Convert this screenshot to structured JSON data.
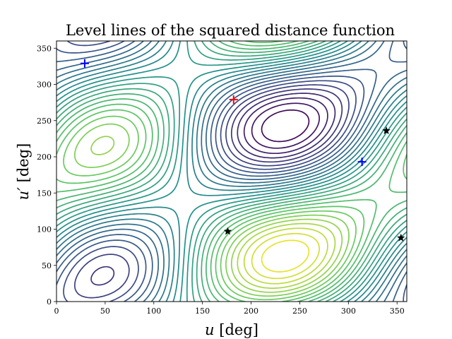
{
  "chart_data": {
    "type": "contour",
    "title": "Level lines of the squared distance function",
    "xlabel_var": "u",
    "xlabel_unit": "[deg]",
    "ylabel_var": "u′",
    "ylabel_unit": "[deg]",
    "xlim": [
      0,
      360
    ],
    "ylim": [
      0,
      360
    ],
    "xticks": [
      0,
      50,
      100,
      150,
      200,
      250,
      300,
      350
    ],
    "yticks": [
      0,
      50,
      100,
      150,
      200,
      250,
      300,
      350
    ],
    "colormap": [
      "#440154",
      "#3b528b",
      "#21918c",
      "#5ec962",
      "#fde725"
    ],
    "markers": [
      {
        "kind": "plus",
        "color": "#ff0000",
        "x": 182,
        "y": 279
      },
      {
        "kind": "plus",
        "color": "#0000ff",
        "x": 29,
        "y": 329
      },
      {
        "kind": "plus",
        "color": "#0000ff",
        "x": 314,
        "y": 193
      },
      {
        "kind": "star",
        "color": "#000000",
        "x": 176,
        "y": 97
      },
      {
        "kind": "star",
        "color": "#000000",
        "x": 339,
        "y": 236
      },
      {
        "kind": "star",
        "color": "#000000",
        "x": 354,
        "y": 88
      }
    ]
  }
}
